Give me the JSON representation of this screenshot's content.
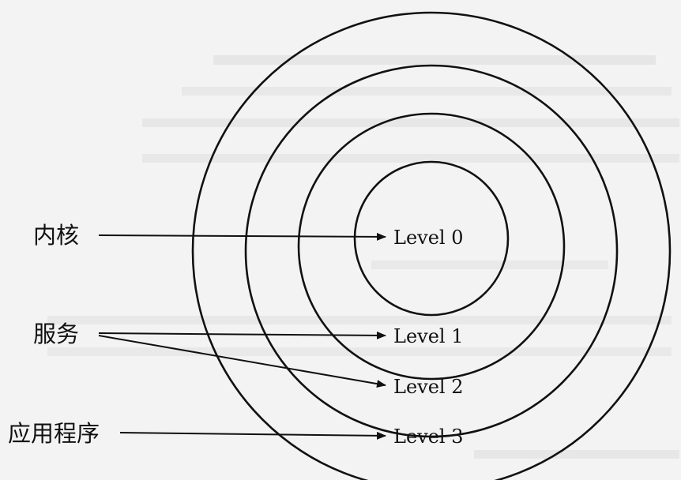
{
  "diagram": {
    "levels": [
      {
        "label": "Level 0"
      },
      {
        "label": "Level 1"
      },
      {
        "label": "Level 2"
      },
      {
        "label": "Level 3"
      }
    ],
    "sources": [
      {
        "label": "内核"
      },
      {
        "label": "服务"
      },
      {
        "label": "应用程序"
      }
    ]
  }
}
